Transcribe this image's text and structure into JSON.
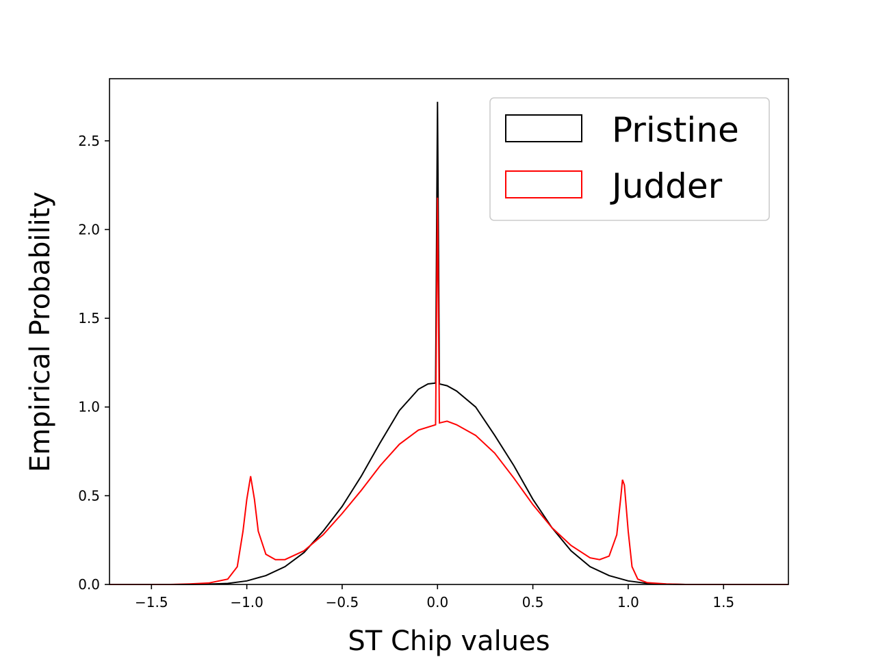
{
  "chart_data": {
    "type": "step",
    "title": "",
    "xlabel": "ST Chip values",
    "ylabel": "Empirical Probability",
    "xlim": [
      -1.72,
      1.84
    ],
    "ylim": [
      0,
      2.85
    ],
    "xticks": [
      -1.5,
      -1.0,
      -0.5,
      0.0,
      0.5,
      1.0,
      1.5
    ],
    "xtick_labels": [
      "−1.5",
      "−1.0",
      "−0.5",
      "0.0",
      "0.5",
      "1.0",
      "1.5"
    ],
    "yticks": [
      0.0,
      0.5,
      1.0,
      1.5,
      2.0,
      2.5
    ],
    "ytick_labels": [
      "0.0",
      "0.5",
      "1.0",
      "1.5",
      "2.0",
      "2.5"
    ],
    "grid": false,
    "legend": "top-right",
    "series": [
      {
        "name": "Pristine",
        "color": "#000000",
        "x": [
          -1.72,
          -1.5,
          -1.3,
          -1.2,
          -1.1,
          -1.0,
          -0.9,
          -0.8,
          -0.7,
          -0.6,
          -0.5,
          -0.4,
          -0.3,
          -0.2,
          -0.1,
          -0.05,
          -0.01,
          0.0,
          0.01,
          0.05,
          0.1,
          0.2,
          0.3,
          0.4,
          0.5,
          0.6,
          0.7,
          0.8,
          0.9,
          1.0,
          1.1,
          1.2,
          1.3,
          1.5,
          1.84
        ],
        "y": [
          0.0,
          0.0,
          0.0,
          0.002,
          0.006,
          0.02,
          0.05,
          0.1,
          0.18,
          0.3,
          0.44,
          0.61,
          0.8,
          0.98,
          1.1,
          1.13,
          1.135,
          2.72,
          1.13,
          1.12,
          1.09,
          1.0,
          0.84,
          0.67,
          0.48,
          0.32,
          0.19,
          0.1,
          0.05,
          0.02,
          0.006,
          0.002,
          0.0,
          0.0,
          0.0
        ]
      },
      {
        "name": "Judder",
        "color": "#ff0000",
        "x": [
          -1.72,
          -1.4,
          -1.3,
          -1.2,
          -1.1,
          -1.05,
          -1.02,
          -1.0,
          -0.98,
          -0.96,
          -0.94,
          -0.9,
          -0.85,
          -0.8,
          -0.7,
          -0.6,
          -0.5,
          -0.4,
          -0.3,
          -0.2,
          -0.1,
          -0.01,
          0.0,
          0.01,
          0.05,
          0.1,
          0.2,
          0.3,
          0.4,
          0.5,
          0.6,
          0.7,
          0.8,
          0.85,
          0.9,
          0.94,
          0.96,
          0.97,
          0.98,
          1.0,
          1.02,
          1.05,
          1.1,
          1.2,
          1.3,
          1.4,
          1.84
        ],
        "y": [
          0.0,
          0.0,
          0.003,
          0.008,
          0.03,
          0.1,
          0.3,
          0.48,
          0.61,
          0.48,
          0.3,
          0.17,
          0.14,
          0.14,
          0.19,
          0.28,
          0.4,
          0.53,
          0.67,
          0.79,
          0.87,
          0.9,
          2.18,
          0.91,
          0.92,
          0.9,
          0.84,
          0.74,
          0.6,
          0.45,
          0.32,
          0.22,
          0.15,
          0.14,
          0.16,
          0.28,
          0.48,
          0.59,
          0.56,
          0.3,
          0.1,
          0.03,
          0.01,
          0.003,
          0.0,
          0.0,
          0.0
        ]
      }
    ]
  }
}
